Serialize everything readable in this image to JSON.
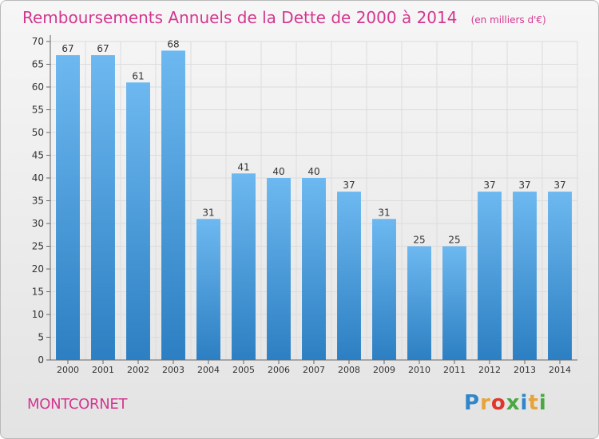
{
  "header": {
    "title": "Remboursements Annuels de la Dette de 2000 à 2014",
    "units": "(en milliers d'€)"
  },
  "commune": "MONTCORNET",
  "brand": {
    "text": "Proxiti",
    "letter_colors": [
      "#2f86c9",
      "#e8a33a",
      "#e0362c",
      "#49a842",
      "#2f86c9",
      "#e8a33a",
      "#49a842"
    ]
  },
  "chart_data": {
    "type": "bar",
    "categories": [
      "2000",
      "2001",
      "2002",
      "2003",
      "2004",
      "2005",
      "2006",
      "2007",
      "2008",
      "2009",
      "2010",
      "2011",
      "2012",
      "2013",
      "2014"
    ],
    "values": [
      67,
      67,
      61,
      68,
      31,
      41,
      40,
      40,
      37,
      31,
      25,
      25,
      37,
      37,
      37
    ],
    "ylim": [
      0,
      70
    ],
    "ytick_step": 5,
    "grid": true,
    "data_labels": true,
    "bar_color": "#3b8fd6"
  }
}
